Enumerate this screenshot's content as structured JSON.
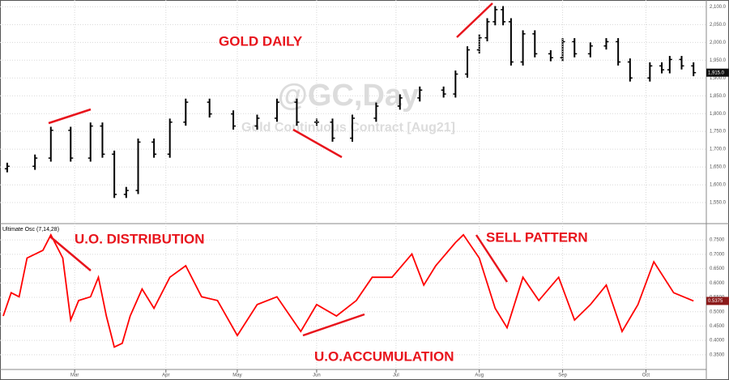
{
  "chart_data": [
    {
      "type": "ohlc",
      "title": "GOLD DAILY",
      "watermark": "@GC,Day",
      "subtitle": "Gold Continuous Contract [Aug21]",
      "x": [
        1,
        8,
        12,
        17,
        22,
        25,
        28,
        31,
        34,
        38,
        42,
        46,
        52,
        58,
        64,
        69,
        74,
        79,
        83,
        88,
        94,
        100,
        105,
        111,
        114,
        117,
        120,
        122,
        124,
        126,
        128,
        131,
        134,
        138,
        141,
        144,
        148,
        152,
        155,
        158,
        163,
        166,
        168,
        171,
        174
      ],
      "open": [
        1645,
        1652,
        1675,
        1753,
        1675,
        1765,
        1686,
        1573,
        1584,
        1720,
        1686,
        1776,
        1832,
        1799,
        1765,
        1787,
        1832,
        1776,
        1776,
        1731,
        1787,
        1821,
        1844,
        1866,
        1855,
        1911,
        1979,
        2013,
        2058,
        2092,
        2058,
        1945,
        2024,
        1968,
        1957,
        2002,
        1968,
        1990,
        2002,
        1945,
        1900,
        1934,
        1923,
        1952,
        1934
      ],
      "high": [
        1662,
        1685,
        1763,
        1763,
        1775,
        1775,
        1696,
        1594,
        1730,
        1730,
        1786,
        1842,
        1842,
        1809,
        1797,
        1842,
        1842,
        1786,
        1786,
        1797,
        1831,
        1854,
        1876,
        1876,
        1921,
        1989,
        2023,
        2068,
        2102,
        2102,
        2068,
        2034,
        2034,
        1978,
        2012,
        2012,
        2000,
        2012,
        2012,
        1955,
        1944,
        1944,
        1962,
        1962,
        1944
      ],
      "low": [
        1635,
        1642,
        1665,
        1665,
        1665,
        1676,
        1563,
        1563,
        1574,
        1676,
        1676,
        1766,
        1789,
        1755,
        1755,
        1777,
        1766,
        1766,
        1721,
        1721,
        1777,
        1811,
        1834,
        1845,
        1845,
        1901,
        1969,
        2003,
        2048,
        2048,
        1935,
        1935,
        1958,
        1947,
        1947,
        1958,
        1958,
        1980,
        1935,
        1890,
        1890,
        1913,
        1913,
        1924,
        1905
      ],
      "close": [
        1652,
        1675,
        1753,
        1675,
        1765,
        1686,
        1573,
        1584,
        1720,
        1686,
        1776,
        1832,
        1799,
        1765,
        1787,
        1832,
        1776,
        1776,
        1731,
        1787,
        1821,
        1844,
        1866,
        1855,
        1911,
        1979,
        2013,
        2058,
        2092,
        2058,
        1945,
        2024,
        1968,
        1957,
        2002,
        1968,
        1990,
        2002,
        1945,
        1900,
        1934,
        1923,
        1952,
        1934,
        1915
      ],
      "color": "#000000",
      "last_price": {
        "value": 1915,
        "label": "1,915.0"
      },
      "xlim": [
        0,
        176
      ],
      "ylim": [
        1500,
        2110
      ],
      "yticks": [
        {
          "value": 1550,
          "label": "1,550.0"
        },
        {
          "value": 1600,
          "label": "1,600.0"
        },
        {
          "value": 1650,
          "label": "1,650.0"
        },
        {
          "value": 1700,
          "label": "1,700.0"
        },
        {
          "value": 1750,
          "label": "1,750.0"
        },
        {
          "value": 1800,
          "label": "1,800.0"
        },
        {
          "value": 1850,
          "label": "1,850.0"
        },
        {
          "value": 1900,
          "label": "1,900.0"
        },
        {
          "value": 1950,
          "label": "1,950.0"
        },
        {
          "value": 2000,
          "label": "2,000.0"
        },
        {
          "value": 2050,
          "label": "2,050.0"
        },
        {
          "value": 2100,
          "label": "2,100.0"
        }
      ],
      "grid": true
    },
    {
      "type": "line",
      "title": "Ultimate Osc (7,14,28)",
      "annotations": [
        "U.O. DISTRIBUTION",
        "SELL PATTERN",
        "U.O.ACCUMULATION"
      ],
      "x": [
        0,
        2,
        4,
        6,
        10,
        12,
        15,
        17,
        19,
        22,
        24,
        26,
        28,
        30,
        32,
        35,
        38,
        42,
        46,
        50,
        54,
        59,
        64,
        69,
        75,
        79,
        84,
        89,
        93,
        98,
        103,
        106,
        109,
        114,
        116,
        120,
        124,
        127,
        131,
        135,
        140,
        144,
        148,
        152,
        156,
        160,
        164,
        169,
        174
      ],
      "series": [
        {
          "name": "Ultimate Osc (7,14,28)",
          "color": "#ff0000",
          "values": [
            0.485,
            0.566,
            0.552,
            0.687,
            0.714,
            0.768,
            0.687,
            0.471,
            0.539,
            0.552,
            0.62,
            0.485,
            0.377,
            0.39,
            0.485,
            0.579,
            0.512,
            0.62,
            0.66,
            0.552,
            0.539,
            0.417,
            0.525,
            0.552,
            0.431,
            0.525,
            0.485,
            0.539,
            0.62,
            0.62,
            0.701,
            0.593,
            0.66,
            0.741,
            0.768,
            0.687,
            0.512,
            0.444,
            0.62,
            0.539,
            0.62,
            0.471,
            0.525,
            0.593,
            0.431,
            0.525,
            0.674,
            0.566,
            0.5375
          ]
        }
      ],
      "xlim": [
        0,
        176
      ],
      "ylim": [
        0.31,
        0.79
      ],
      "yticks": [
        {
          "value": 0.35,
          "label": "0.3500"
        },
        {
          "value": 0.4,
          "label": "0.4000"
        },
        {
          "value": 0.45,
          "label": "0.4500"
        },
        {
          "value": 0.5,
          "label": "0.5000"
        },
        {
          "value": 0.55,
          "label": "0.5500"
        },
        {
          "value": 0.6,
          "label": "0.6000"
        },
        {
          "value": 0.65,
          "label": "0.6500"
        },
        {
          "value": 0.7,
          "label": "0.7000"
        },
        {
          "value": 0.75,
          "label": "0.7500"
        }
      ],
      "xticks": [
        {
          "value": 18,
          "label": "Mar"
        },
        {
          "value": 41,
          "label": "Apr"
        },
        {
          "value": 59,
          "label": "May"
        },
        {
          "value": 79,
          "label": "Jun"
        },
        {
          "value": 99,
          "label": "Jul"
        },
        {
          "value": 120,
          "label": "Aug"
        },
        {
          "value": 141,
          "label": "Sep"
        },
        {
          "value": 162,
          "label": "Oct"
        }
      ],
      "grid": true
    }
  ]
}
